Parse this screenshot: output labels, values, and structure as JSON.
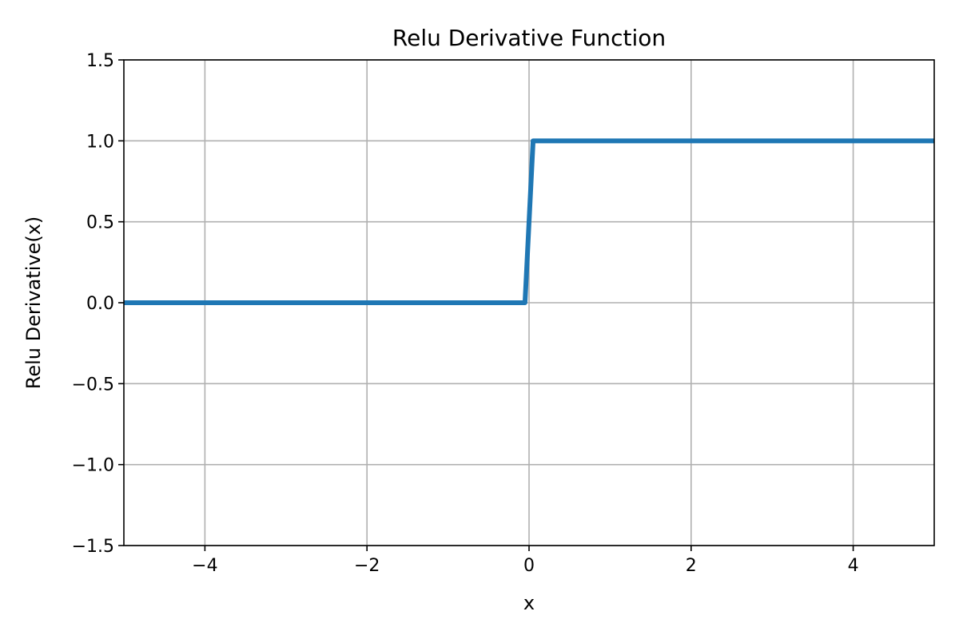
{
  "chart_data": {
    "type": "line",
    "title": "Relu Derivative Function",
    "xlabel": "x",
    "ylabel": "Relu Derivative(x)",
    "xlim": [
      -5,
      5
    ],
    "ylim": [
      -1.5,
      1.5
    ],
    "grid": true,
    "x_ticks": [
      -4,
      -2,
      0,
      2,
      4
    ],
    "x_tick_labels": [
      "−4",
      "−2",
      "0",
      "2",
      "4"
    ],
    "y_ticks": [
      -1.5,
      -1.0,
      -0.5,
      0.0,
      0.5,
      1.0,
      1.5
    ],
    "y_tick_labels": [
      "−1.5",
      "−1.0",
      "−0.5",
      "0.0",
      "0.5",
      "1.0",
      "1.5"
    ],
    "series": [
      {
        "color": "#1f77b4",
        "x": [
          -5,
          -0.05,
          0.05,
          5
        ],
        "y": [
          0,
          0,
          1,
          1
        ]
      }
    ]
  }
}
